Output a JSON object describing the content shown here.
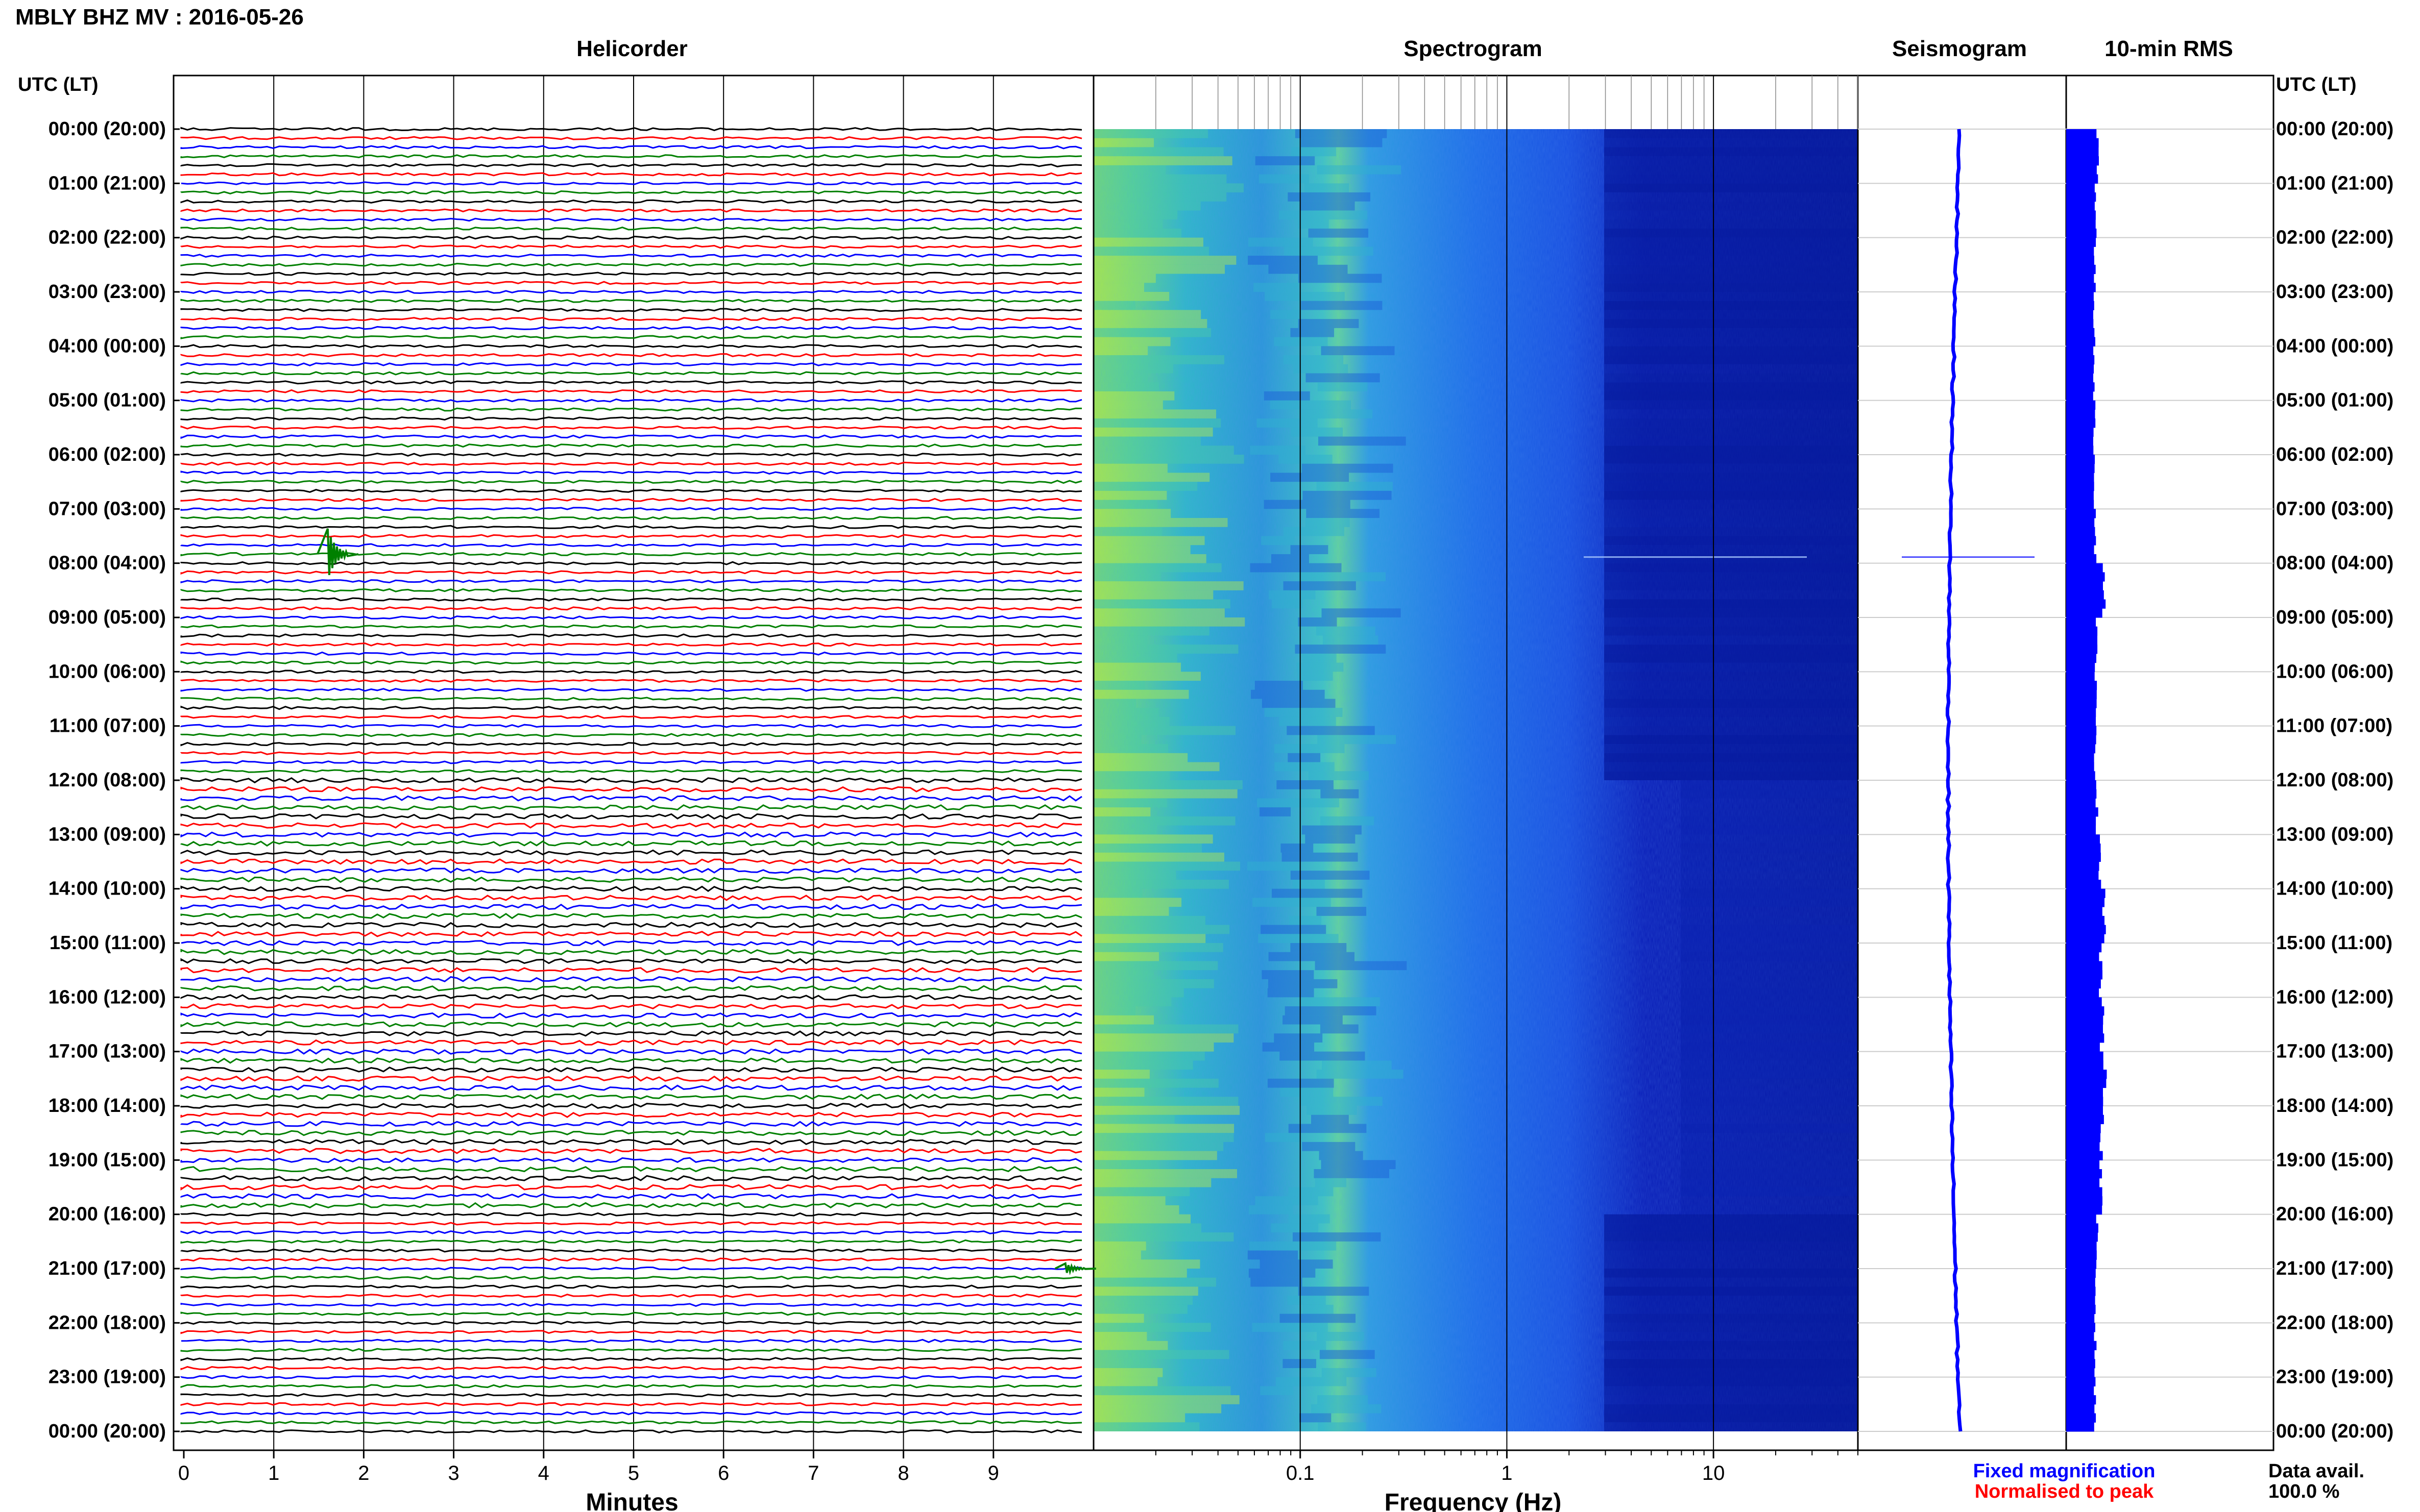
{
  "header": {
    "title": "MBLY BHZ MV : 2016-05-26",
    "left_axis_label": "UTC (LT)",
    "right_axis_label": "UTC (LT)"
  },
  "panels": {
    "helicorder": "Helicorder",
    "spectrogram": "Spectrogram",
    "seismogram": "Seismogram",
    "rms": "10-min RMS"
  },
  "xlabels": {
    "minutes": "Minutes",
    "frequency": "Frequency (Hz)"
  },
  "legend": {
    "fixed": "Fixed magnification",
    "normalised": "Normalised to peak",
    "fixed_color": "#0000ff",
    "normalised_color": "#ff0000"
  },
  "data_avail": {
    "label": "Data avail.",
    "value": "100.0 %"
  },
  "chart_data": {
    "type": "helicorder",
    "time_labels": [
      "00:00 (20:00)",
      "01:00 (21:00)",
      "02:00 (22:00)",
      "03:00 (23:00)",
      "04:00 (00:00)",
      "05:00 (01:00)",
      "06:00 (02:00)",
      "07:00 (03:00)",
      "08:00 (04:00)",
      "09:00 (05:00)",
      "10:00 (06:00)",
      "11:00 (07:00)",
      "12:00 (08:00)",
      "13:00 (09:00)",
      "14:00 (10:00)",
      "15:00 (11:00)",
      "16:00 (12:00)",
      "17:00 (13:00)",
      "18:00 (14:00)",
      "19:00 (15:00)",
      "20:00 (16:00)",
      "21:00 (17:00)",
      "22:00 (18:00)",
      "23:00 (19:00)",
      "00:00 (20:00)"
    ],
    "minute_ticks": [
      "0",
      "1",
      "2",
      "3",
      "4",
      "5",
      "6",
      "7",
      "8",
      "9"
    ],
    "freq_ticks": [
      {
        "value": 0.1,
        "label": "0.1"
      },
      {
        "value": 1,
        "label": "1"
      },
      {
        "value": 10,
        "label": "10"
      }
    ],
    "freq_range_hz": [
      0.01,
      50
    ],
    "minutes_range": [
      0,
      10
    ],
    "trace_colors": [
      "#000000",
      "#ff0000",
      "#0000ff",
      "#008000"
    ],
    "traces_per_hour": 6,
    "events": [
      {
        "time_utc": "07:50",
        "minute": 1.6,
        "trace_color": "#008000",
        "note": "spike"
      },
      {
        "time_utc": "21:00",
        "minute": 9.8,
        "trace_color": "#008000",
        "note": "small event"
      }
    ],
    "rms_hourly": [
      0.45,
      0.35,
      0.32,
      0.3,
      0.3,
      0.3,
      0.32,
      0.34,
      0.7,
      0.38,
      0.36,
      0.34,
      0.4,
      0.55,
      0.7,
      0.55,
      0.6,
      0.75,
      0.6,
      0.55,
      0.4,
      0.35,
      0.34,
      0.32
    ],
    "spectrogram_noise_high_hours": [
      12,
      13,
      14,
      15,
      16,
      17,
      18,
      19
    ]
  }
}
